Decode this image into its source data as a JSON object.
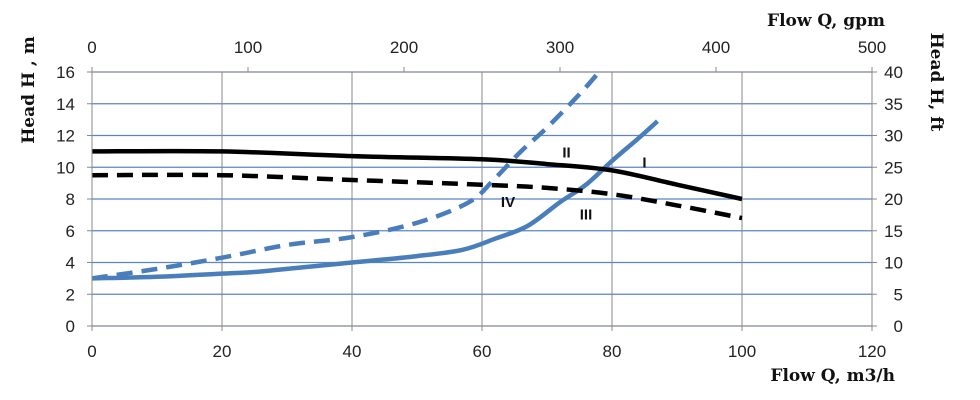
{
  "chart_data": {
    "type": "line",
    "xlabel": "Flow Q, m3/h",
    "x2label": "Flow Q, gpm",
    "ylabel": "Head H , m",
    "y2label": "Head H, ft",
    "xlim": [
      0,
      120
    ],
    "x2lim": [
      0,
      500
    ],
    "ylim": [
      0,
      16
    ],
    "y2lim": [
      0,
      40
    ],
    "xticks": [
      "0",
      "20",
      "40",
      "60",
      "80",
      "100",
      "120"
    ],
    "x2ticks": [
      "0",
      "100",
      "200",
      "300",
      "400",
      "500"
    ],
    "yticks": [
      "0",
      "2",
      "4",
      "6",
      "8",
      "10",
      "12",
      "14",
      "16"
    ],
    "y2ticks": [
      "0",
      "5",
      "10",
      "15",
      "20",
      "25",
      "30",
      "35",
      "40"
    ],
    "grid": true,
    "series": [
      {
        "name": "I",
        "color": "#4a7ebb",
        "dash": "solid",
        "points": [
          [
            0,
            3.0
          ],
          [
            10,
            3.1
          ],
          [
            20,
            3.3
          ],
          [
            25,
            3.4
          ],
          [
            30,
            3.6
          ],
          [
            40,
            4.0
          ],
          [
            50,
            4.4
          ],
          [
            57,
            4.8
          ],
          [
            62,
            5.5
          ],
          [
            67,
            6.3
          ],
          [
            72,
            7.8
          ],
          [
            76,
            8.9
          ],
          [
            80,
            10.4
          ],
          [
            84,
            11.8
          ],
          [
            87,
            12.9
          ]
        ]
      },
      {
        "name": "II",
        "color": "#4a7ebb",
        "dash": "dashed",
        "points": [
          [
            0,
            3.0
          ],
          [
            10,
            3.6
          ],
          [
            20,
            4.3
          ],
          [
            30,
            5.1
          ],
          [
            40,
            5.6
          ],
          [
            50,
            6.5
          ],
          [
            58,
            7.8
          ],
          [
            62,
            9.3
          ],
          [
            66,
            11.0
          ],
          [
            70,
            12.5
          ],
          [
            75,
            14.6
          ],
          [
            78,
            16.0
          ]
        ]
      },
      {
        "name": "III",
        "color": "#000000",
        "dash": "dashed",
        "points": [
          [
            0,
            9.5
          ],
          [
            20,
            9.5
          ],
          [
            40,
            9.2
          ],
          [
            60,
            8.9
          ],
          [
            70,
            8.7
          ],
          [
            80,
            8.3
          ],
          [
            90,
            7.6
          ],
          [
            100,
            6.8
          ]
        ]
      },
      {
        "name": "IV",
        "color": "#000000",
        "dash": "solid",
        "points": [
          [
            0,
            11.0
          ],
          [
            20,
            11.0
          ],
          [
            40,
            10.7
          ],
          [
            60,
            10.5
          ],
          [
            70,
            10.2
          ],
          [
            80,
            9.8
          ],
          [
            90,
            8.9
          ],
          [
            100,
            8.0
          ]
        ]
      }
    ],
    "labels": [
      {
        "text": "II",
        "x": 73,
        "y": 10.6
      },
      {
        "text": "I",
        "x": 85,
        "y": 10.0
      },
      {
        "text": "IV",
        "x": 64,
        "y": 7.5
      },
      {
        "text": "III",
        "x": 76,
        "y": 6.7
      }
    ]
  }
}
